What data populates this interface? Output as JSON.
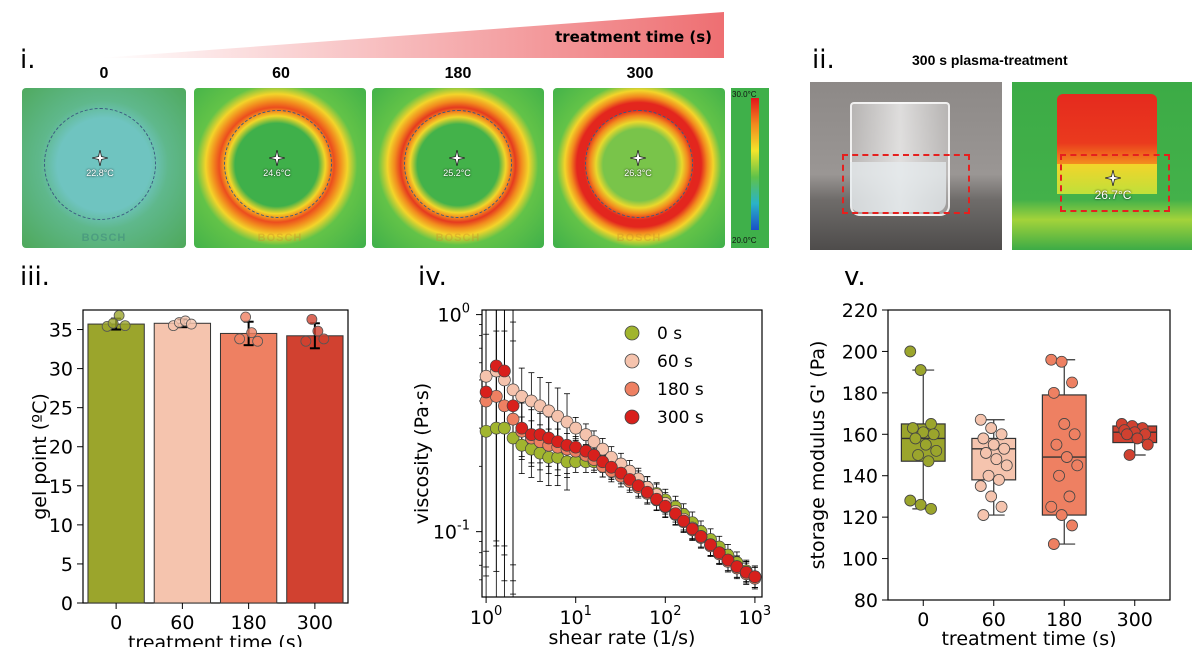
{
  "panel_i": {
    "label": "i.",
    "gradient_title": "treatment time (s)",
    "columns": [
      {
        "time": "0",
        "temp": "22.8°C"
      },
      {
        "time": "60",
        "temp": "24.6°C"
      },
      {
        "time": "180",
        "temp": "25.2°C"
      },
      {
        "time": "300",
        "temp": "26.3°C"
      }
    ],
    "watermark": "BOSCH",
    "scale_max": "30.0°C",
    "scale_min": "20.0°C"
  },
  "panel_ii": {
    "label": "ii.",
    "title": "300 s plasma-treatment",
    "temp": "26.7°C"
  },
  "chart_data": [
    {
      "panel": "iii.",
      "type": "bar",
      "categories": [
        "0",
        "60",
        "180",
        "300"
      ],
      "values": [
        35.7,
        35.8,
        34.5,
        34.2
      ],
      "errors": [
        0.7,
        0.5,
        1.5,
        1.6
      ],
      "points": [
        [
          35.4,
          35.8,
          36.8,
          35.5
        ],
        [
          35.5,
          35.9,
          36.1,
          35.7
        ],
        [
          33.8,
          36.6,
          34.6,
          33.5
        ],
        [
          33.5,
          36.3,
          34.8,
          33.8
        ]
      ],
      "colors": [
        "#9ba52c",
        "#f5c4ae",
        "#ee8062",
        "#d14130"
      ],
      "ylabel": "gel point (ºC)",
      "xlabel": "treatment time (s)",
      "ylim": [
        0,
        37.5
      ],
      "yticks": [
        "0",
        "5",
        "10",
        "15",
        "20",
        "25",
        "30",
        "35"
      ]
    },
    {
      "panel": "iv.",
      "type": "scatter",
      "xscale": "log",
      "yscale": "log",
      "xlabel": "shear rate (1/s)",
      "ylabel": "viscosity (Pa·s)",
      "xlim": [
        0.9,
        1200
      ],
      "ylim": [
        0.05,
        1.05
      ],
      "xticks": [
        "10^0",
        "10^1",
        "10^2",
        "10^3"
      ],
      "yticks": [
        "10^-1",
        "10^0"
      ],
      "legend_position": "top-right",
      "series": [
        {
          "name": "0 s",
          "color": "#a1b52e",
          "x": [
            1,
            1.3,
            1.6,
            2,
            2.5,
            3.2,
            4,
            5,
            6.3,
            8,
            10,
            13,
            16,
            20,
            25,
            32,
            40,
            50,
            63,
            80,
            100,
            130,
            160,
            200,
            250,
            320,
            400,
            500,
            630,
            800,
            1000
          ],
          "y": [
            0.29,
            0.3,
            0.3,
            0.27,
            0.25,
            0.24,
            0.23,
            0.22,
            0.22,
            0.21,
            0.21,
            0.21,
            0.21,
            0.2,
            0.195,
            0.19,
            0.18,
            0.17,
            0.16,
            0.15,
            0.14,
            0.13,
            0.12,
            0.11,
            0.1,
            0.092,
            0.085,
            0.078,
            0.072,
            0.066,
            0.062
          ]
        },
        {
          "name": "60 s",
          "color": "#f5c3ad",
          "x": [
            1,
            1.3,
            1.6,
            2,
            2.5,
            3.2,
            4,
            5,
            6.3,
            8,
            10,
            13,
            16,
            20,
            25,
            32,
            40,
            50,
            63,
            80,
            100,
            130,
            160,
            200,
            250,
            320,
            400,
            500,
            630,
            800,
            1000
          ],
          "y": [
            0.52,
            0.55,
            0.5,
            0.45,
            0.42,
            0.4,
            0.38,
            0.36,
            0.34,
            0.32,
            0.3,
            0.28,
            0.26,
            0.24,
            0.22,
            0.205,
            0.19,
            0.175,
            0.16,
            0.148,
            0.135,
            0.124,
            0.114,
            0.104,
            0.095,
            0.087,
            0.08,
            0.074,
            0.069,
            0.065,
            0.062
          ]
        },
        {
          "name": "180 s",
          "color": "#ee8062",
          "x": [
            1,
            1.3,
            1.6,
            2,
            2.5,
            3.2,
            4,
            5,
            6.3,
            8,
            10,
            13,
            16,
            20,
            25,
            32,
            40,
            50,
            63,
            80,
            100,
            130,
            160,
            200,
            250,
            320,
            400,
            500,
            630,
            800,
            1000
          ],
          "y": [
            0.4,
            0.42,
            0.38,
            0.33,
            0.29,
            0.27,
            0.26,
            0.25,
            0.245,
            0.24,
            0.235,
            0.225,
            0.215,
            0.2,
            0.19,
            0.18,
            0.17,
            0.16,
            0.15,
            0.14,
            0.13,
            0.12,
            0.111,
            0.102,
            0.094,
            0.086,
            0.079,
            0.073,
            0.068,
            0.064,
            0.061
          ]
        },
        {
          "name": "300 s",
          "color": "#d8201c",
          "x": [
            1,
            1.3,
            1.6,
            2,
            2.5,
            3.2,
            4,
            5,
            6.3,
            8,
            10,
            13,
            16,
            20,
            25,
            32,
            40,
            50,
            63,
            80,
            100,
            130,
            160,
            200,
            250,
            320,
            400,
            500,
            630,
            800,
            1000
          ],
          "y": [
            0.44,
            0.58,
            0.55,
            0.38,
            0.3,
            0.28,
            0.28,
            0.27,
            0.26,
            0.25,
            0.245,
            0.235,
            0.225,
            0.21,
            0.198,
            0.186,
            0.174,
            0.163,
            0.152,
            0.141,
            0.131,
            0.121,
            0.112,
            0.103,
            0.095,
            0.087,
            0.08,
            0.074,
            0.069,
            0.065,
            0.062
          ]
        }
      ]
    },
    {
      "panel": "v.",
      "type": "box",
      "categories": [
        "0",
        "60",
        "180",
        "300"
      ],
      "colors": [
        "#9ba52c",
        "#f5c4ae",
        "#ee8062",
        "#d14130"
      ],
      "xlabel": "treatment time (s)",
      "ylabel": "storage modulus G' (Pa)",
      "ylim": [
        80,
        220
      ],
      "yticks": [
        "80",
        "100",
        "120",
        "140",
        "160",
        "180",
        "200",
        "220"
      ],
      "boxes": [
        {
          "min": 124,
          "q1": 147,
          "median": 158,
          "q3": 165,
          "max": 191
        },
        {
          "min": 121,
          "q1": 138,
          "median": 153,
          "q3": 158,
          "max": 167
        },
        {
          "min": 107,
          "q1": 121,
          "median": 149,
          "q3": 179,
          "max": 196
        },
        {
          "min": 150,
          "q1": 156,
          "median": 161,
          "q3": 164,
          "max": 165
        }
      ],
      "points": [
        [
          200,
          191,
          165,
          163,
          161,
          160,
          158,
          155,
          152,
          150,
          147,
          128,
          126,
          124
        ],
        [
          167,
          163,
          160,
          158,
          155,
          153,
          151,
          148,
          145,
          140,
          138,
          135,
          130,
          125,
          121
        ],
        [
          196,
          195,
          185,
          180,
          165,
          160,
          155,
          149,
          145,
          140,
          130,
          125,
          121,
          116,
          107
        ],
        [
          165,
          164,
          163,
          162,
          161,
          160,
          160,
          158,
          155,
          150
        ]
      ]
    }
  ]
}
